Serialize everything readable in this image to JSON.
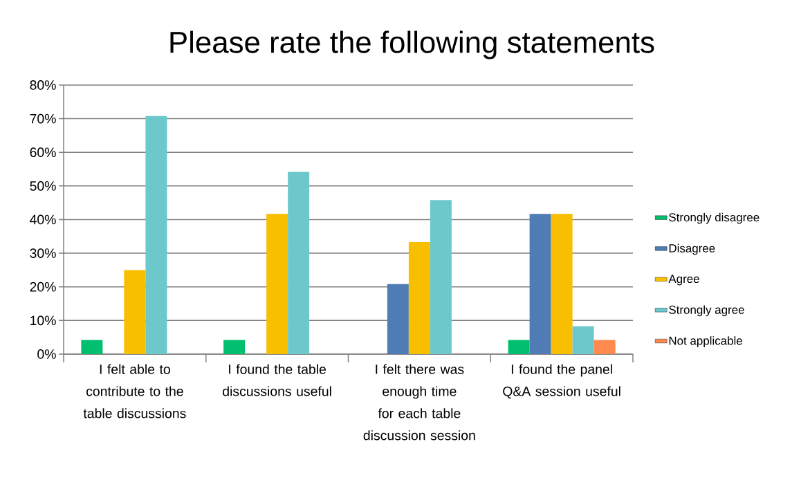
{
  "chart_data": {
    "type": "bar",
    "title": "Please rate the following statements",
    "categories": [
      "I felt able to contribute to the table discussions",
      "I found the table discussions useful",
      "I felt there was enough time for each table discussion session",
      "I found the panel Q&A session useful"
    ],
    "series": [
      {
        "name": "Strongly disagree",
        "color": "#00bf6f",
        "values": [
          4.2,
          4.2,
          null,
          4.2
        ]
      },
      {
        "name": "Disagree",
        "color": "#4f7cb5",
        "values": [
          null,
          null,
          20.8,
          41.7
        ]
      },
      {
        "name": "Agree",
        "color": "#f8be00",
        "values": [
          25,
          41.7,
          33.3,
          41.7
        ]
      },
      {
        "name": "Strongly agree",
        "color": "#6dc8cc",
        "values": [
          70.8,
          54.2,
          45.8,
          8.3
        ]
      },
      {
        "name": "Not applicable",
        "color": "#ff8a4f",
        "values": [
          null,
          null,
          null,
          4.2
        ]
      }
    ],
    "ylim": [
      0,
      80
    ],
    "yticks": [
      {
        "value": 0,
        "label": "0%"
      },
      {
        "value": 10,
        "label": "10%"
      },
      {
        "value": 20,
        "label": "20%"
      },
      {
        "value": 30,
        "label": "30%"
      },
      {
        "value": 40,
        "label": "40%"
      },
      {
        "value": 50,
        "label": "50%"
      },
      {
        "value": 60,
        "label": "60%"
      },
      {
        "value": 70,
        "label": "70%"
      },
      {
        "value": 80,
        "label": "80%"
      }
    ],
    "grid": "y",
    "legend": "right"
  }
}
